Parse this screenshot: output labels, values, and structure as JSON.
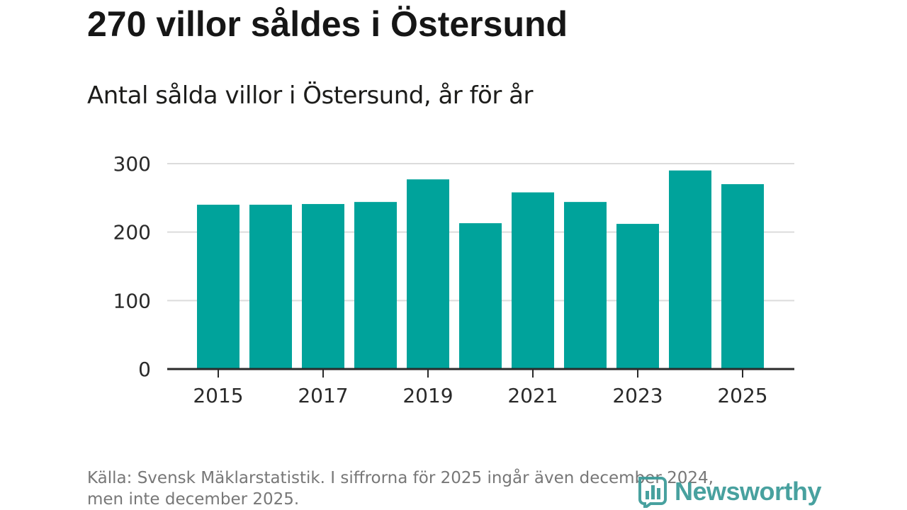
{
  "title": "270 villor såldes i Östersund",
  "subtitle": "Antal sålda villor i Östersund, år för år",
  "source": {
    "line1": "Källa: Svensk Mäklarstatistik. I siffrorna för 2025 ingår även december 2024,",
    "line2": "men inte december 2025."
  },
  "logo": {
    "text": "Newsworthy",
    "icon": "bar-chart-icon"
  },
  "colors": {
    "bar": "#00a39b",
    "grid": "#dcdcdc",
    "axis": "#2a2a2a",
    "logo": "#3f9c9a"
  },
  "chart_data": {
    "type": "bar",
    "title": "Antal sålda villor i Östersund, år för år",
    "xlabel": "",
    "ylabel": "",
    "categories": [
      "2015",
      "2016",
      "2017",
      "2018",
      "2019",
      "2020",
      "2021",
      "2022",
      "2023",
      "2024",
      "2025"
    ],
    "values": [
      240,
      240,
      241,
      244,
      277,
      213,
      258,
      244,
      212,
      290,
      270
    ],
    "ylim": [
      0,
      300
    ],
    "yticks": [
      0,
      100,
      200,
      300
    ],
    "xticks_shown": [
      "2015",
      "2017",
      "2019",
      "2021",
      "2023",
      "2025"
    ],
    "grid": true,
    "legend": "none"
  }
}
